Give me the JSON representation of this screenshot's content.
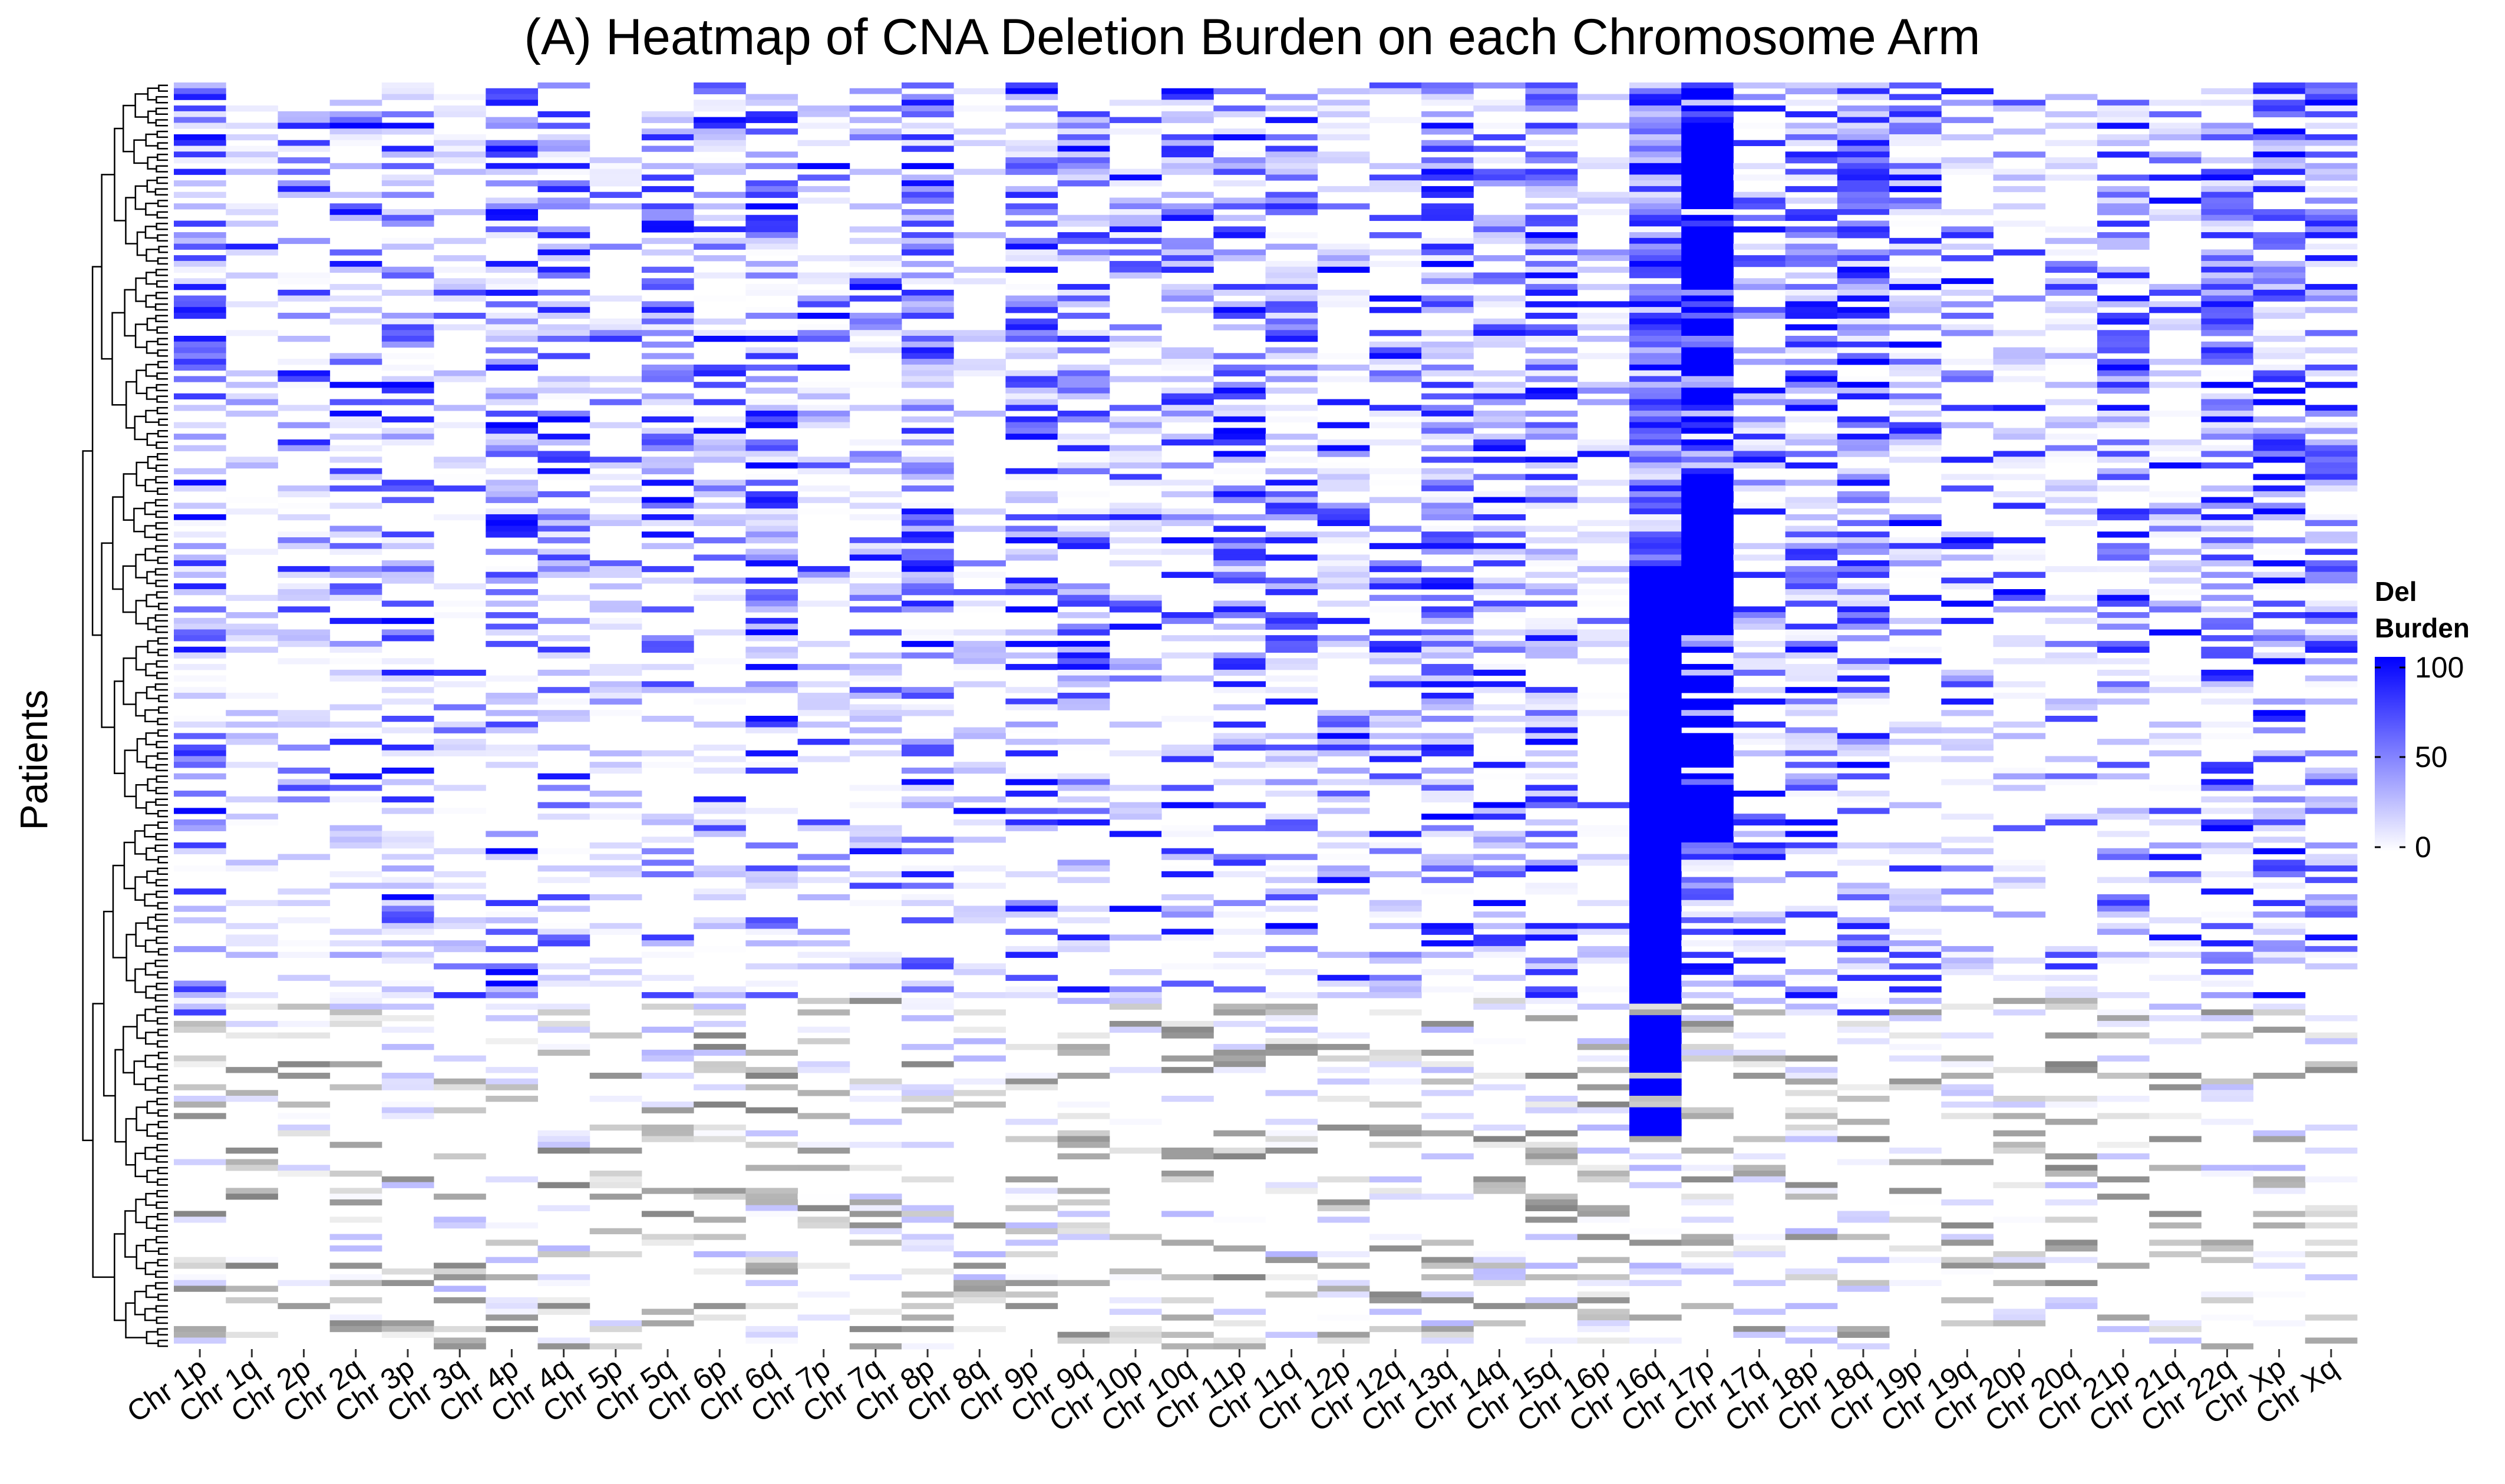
{
  "chart_data": {
    "type": "heatmap",
    "title": "(A) Heatmap of CNA Deletion Burden on each Chromosome Arm",
    "ylabel": "Patients",
    "xlabel": "",
    "categories": [
      "Chr 1p",
      "Chr 1q",
      "Chr 2p",
      "Chr 2q",
      "Chr 3p",
      "Chr 3q",
      "Chr 4p",
      "Chr 4q",
      "Chr 5p",
      "Chr 5q",
      "Chr 6p",
      "Chr 6q",
      "Chr 7p",
      "Chr 7q",
      "Chr 8p",
      "Chr 8q",
      "Chr 9p",
      "Chr 9q",
      "Chr 10p",
      "Chr 10q",
      "Chr 11p",
      "Chr 11q",
      "Chr 12p",
      "Chr 12q",
      "Chr 13q",
      "Chr 14q",
      "Chr 15q",
      "Chr 16p",
      "Chr 16q",
      "Chr 17p",
      "Chr 17q",
      "Chr 18p",
      "Chr 18q",
      "Chr 19p",
      "Chr 19q",
      "Chr 20p",
      "Chr 20q",
      "Chr 21p",
      "Chr 21q",
      "Chr 22q",
      "Chr Xp",
      "Chr Xq"
    ],
    "value_range": [
      0,
      100
    ],
    "colors": {
      "low": "#ffffff",
      "high": "#0000ff",
      "missing": "#999999"
    },
    "legend": {
      "title_line1": "Del",
      "title_line2": "Burden",
      "ticks": [
        "100",
        "50",
        "0"
      ],
      "position": "right"
    },
    "dendrogram": "rows",
    "grid": false
  }
}
